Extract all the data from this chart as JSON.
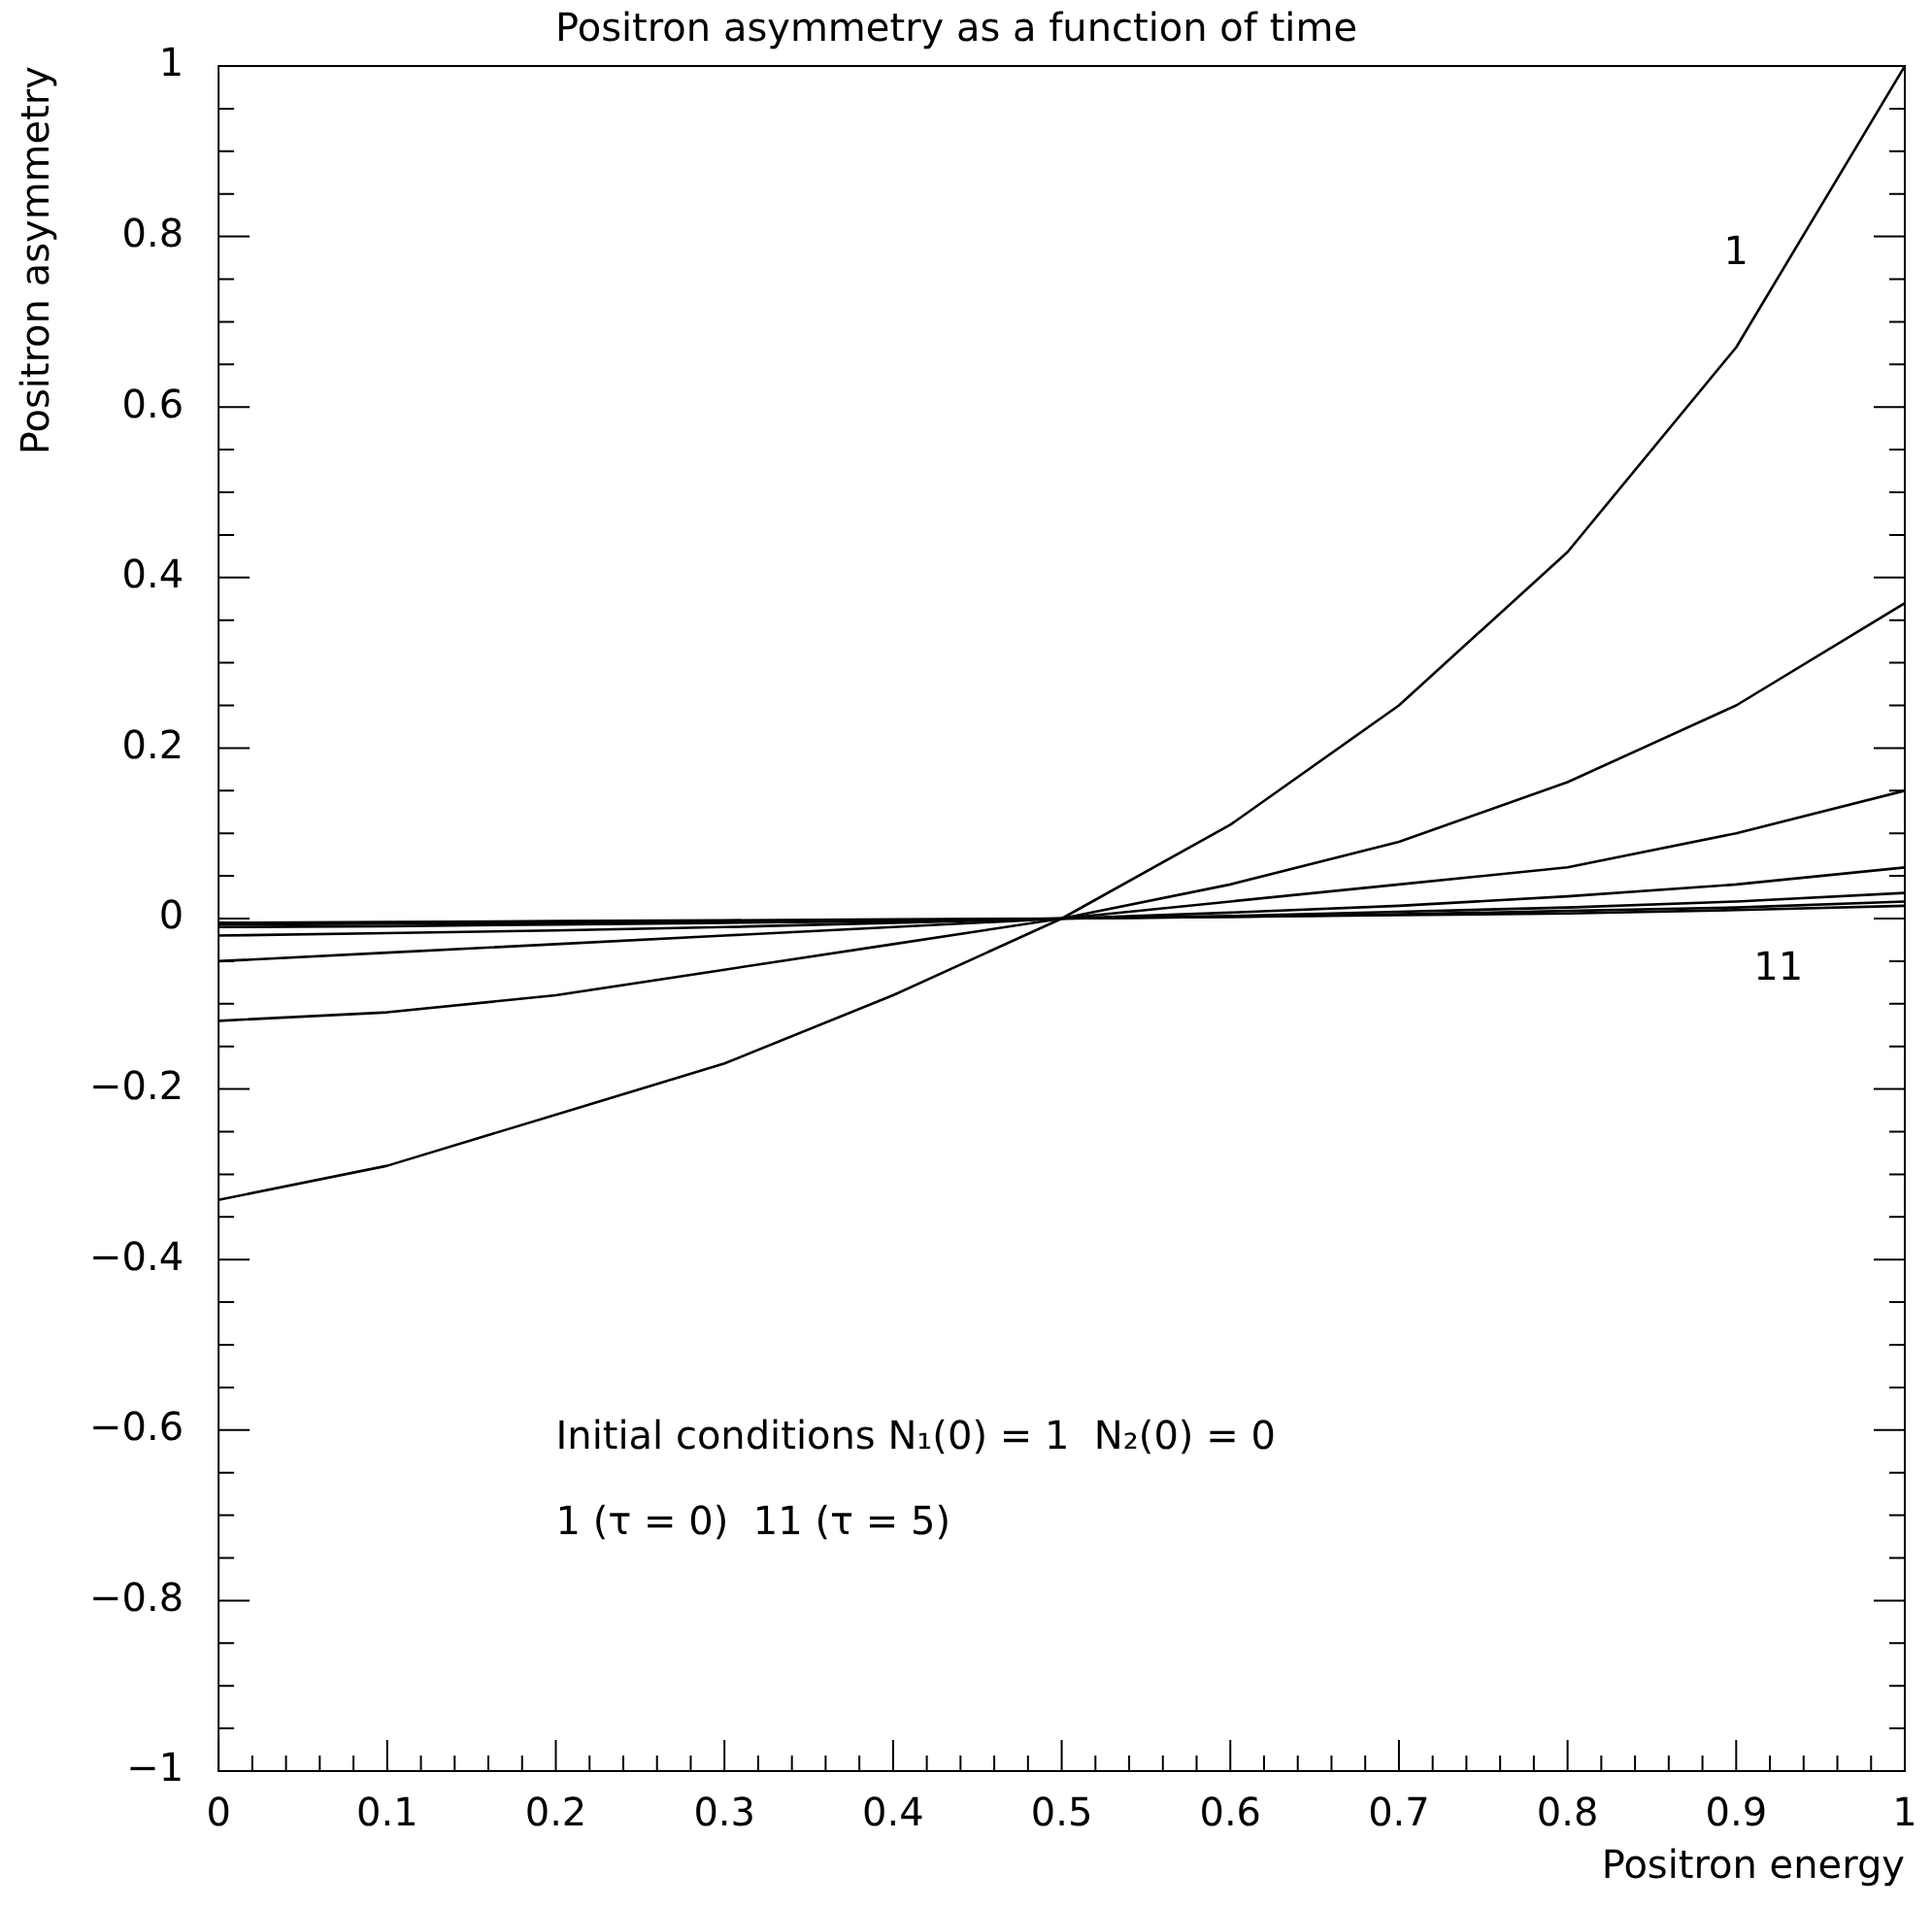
{
  "chart_data": {
    "type": "line",
    "title": "Positron asymmetry as a function of time",
    "xlabel": "Positron energy",
    "ylabel": "Positron asymmetry",
    "x": [
      0,
      0.1,
      0.2,
      0.3,
      0.4,
      0.5,
      0.6,
      0.7,
      0.8,
      0.9,
      1
    ],
    "series": [
      {
        "color": "#000000",
        "values": [
          -0.33,
          -0.29,
          -0.23,
          -0.17,
          -0.09,
          0,
          0.11,
          0.25,
          0.43,
          0.67,
          1
        ]
      },
      {
        "color": "#000000",
        "values": [
          -0.12,
          -0.11,
          -0.09,
          -0.06,
          -0.03,
          0,
          0.04,
          0.09,
          0.16,
          0.25,
          0.37
        ]
      },
      {
        "color": "#000000",
        "values": [
          -0.05,
          -0.04,
          -0.03,
          -0.02,
          -0.01,
          0,
          0.02,
          0.04,
          0.06,
          0.1,
          0.15
        ]
      },
      {
        "color": "#000000",
        "values": [
          -0.02,
          -0.017,
          -0.014,
          -0.01,
          -0.005,
          0,
          0.007,
          0.015,
          0.026,
          0.04,
          0.06
        ]
      },
      {
        "color": "#000000",
        "values": [
          -0.01,
          -0.009,
          -0.007,
          -0.005,
          -0.003,
          0,
          0.003,
          0.008,
          0.013,
          0.02,
          0.03
        ]
      },
      {
        "color": "#000000",
        "values": [
          -0.007,
          -0.006,
          -0.005,
          -0.003,
          -0.002,
          0,
          0.002,
          0.005,
          0.009,
          0.013,
          0.02
        ]
      },
      {
        "color": "#000000",
        "values": [
          -0.005,
          -0.004,
          -0.003,
          -0.002,
          -0.001,
          0,
          0.002,
          0.004,
          0.006,
          0.01,
          0.015
        ]
      }
    ],
    "xlim": [
      0,
      1
    ],
    "ylim": [
      -1,
      1
    ],
    "xticks": [
      0,
      {
        "value": 0.02,
        "label": null
      },
      {
        "value": 0.04,
        "label": null
      },
      {
        "value": 0.06,
        "label": null
      },
      {
        "value": 0.08,
        "label": null
      },
      0.1,
      {
        "value": 0.12,
        "label": null
      },
      {
        "value": 0.14,
        "label": null
      },
      {
        "value": 0.16,
        "label": null
      },
      {
        "value": 0.18,
        "label": null
      },
      0.2,
      {
        "value": 0.22,
        "label": null
      },
      {
        "value": 0.24,
        "label": null
      },
      {
        "value": 0.26,
        "label": null
      },
      {
        "value": 0.28,
        "label": null
      },
      0.3,
      {
        "value": 0.32,
        "label": null
      },
      {
        "value": 0.34,
        "label": null
      },
      {
        "value": 0.36,
        "label": null
      },
      {
        "value": 0.38,
        "label": null
      },
      0.4,
      {
        "value": 0.42,
        "label": null
      },
      {
        "value": 0.44,
        "label": null
      },
      {
        "value": 0.46,
        "label": null
      },
      {
        "value": 0.48,
        "label": null
      },
      0.5,
      {
        "value": 0.52,
        "label": null
      },
      {
        "value": 0.54,
        "label": null
      },
      {
        "value": 0.56,
        "label": null
      },
      {
        "value": 0.58,
        "label": null
      },
      0.6,
      {
        "value": 0.62,
        "label": null
      },
      {
        "value": 0.64,
        "label": null
      },
      {
        "value": 0.66,
        "label": null
      },
      {
        "value": 0.68,
        "label": null
      },
      0.7,
      {
        "value": 0.72,
        "label": null
      },
      {
        "value": 0.74,
        "label": null
      },
      {
        "value": 0.76,
        "label": null
      },
      {
        "value": 0.78,
        "label": null
      },
      0.8,
      {
        "value": 0.82,
        "label": null
      },
      {
        "value": 0.84,
        "label": null
      },
      {
        "value": 0.86,
        "label": null
      },
      {
        "value": 0.88,
        "label": null
      },
      0.9,
      {
        "value": 0.92,
        "label": null
      },
      {
        "value": 0.94,
        "label": null
      },
      {
        "value": 0.96,
        "label": null
      },
      {
        "value": 0.98,
        "label": null
      },
      1
    ],
    "yticks": [
      {
        "value": -1,
        "label": "−1"
      },
      {
        "value": -0.95,
        "label": null
      },
      {
        "value": -0.9,
        "label": null
      },
      {
        "value": -0.85,
        "label": null
      },
      {
        "value": -0.8,
        "label": "−0.8"
      },
      {
        "value": -0.75,
        "label": null
      },
      {
        "value": -0.7,
        "label": null
      },
      {
        "value": -0.65,
        "label": null
      },
      {
        "value": -0.6,
        "label": "−0.6"
      },
      {
        "value": -0.55,
        "label": null
      },
      {
        "value": -0.5,
        "label": null
      },
      {
        "value": -0.45,
        "label": null
      },
      {
        "value": -0.4,
        "label": "−0.4"
      },
      {
        "value": -0.35,
        "label": null
      },
      {
        "value": -0.3,
        "label": null
      },
      {
        "value": -0.25,
        "label": null
      },
      {
        "value": -0.2,
        "label": "−0.2"
      },
      {
        "value": -0.15,
        "label": null
      },
      {
        "value": -0.1,
        "label": null
      },
      {
        "value": -0.05,
        "label": null
      },
      0,
      {
        "value": 0.05,
        "label": null
      },
      {
        "value": 0.1,
        "label": null
      },
      {
        "value": 0.15,
        "label": null
      },
      0.2,
      {
        "value": 0.25,
        "label": null
      },
      {
        "value": 0.3,
        "label": null
      },
      {
        "value": 0.35,
        "label": null
      },
      0.4,
      {
        "value": 0.45,
        "label": null
      },
      {
        "value": 0.5,
        "label": null
      },
      {
        "value": 0.55,
        "label": null
      },
      0.6,
      {
        "value": 0.65,
        "label": null
      },
      {
        "value": 0.7,
        "label": null
      },
      {
        "value": 0.75,
        "label": null
      },
      0.8,
      {
        "value": 0.85,
        "label": null
      },
      {
        "value": 0.9,
        "label": null
      },
      {
        "value": 0.95,
        "label": null
      },
      1
    ],
    "grid": false,
    "legend": false,
    "marker": "none",
    "line_style": "solid",
    "annotations": [
      "1",
      "11",
      "Initial conditions N₁(0) = 1  N₂(0) = 0",
      "1 (τ = 0)  11 (τ = 5)"
    ]
  }
}
